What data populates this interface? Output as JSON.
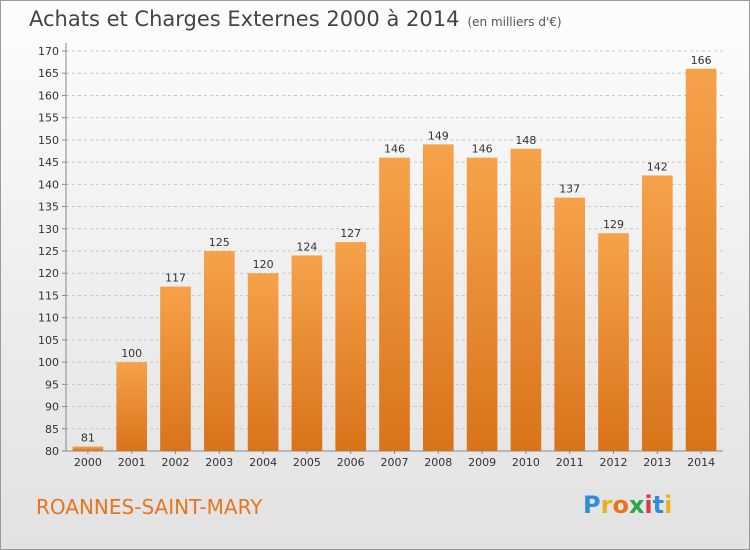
{
  "header": {
    "title": "Achats et Charges Externes 2000 à 2014",
    "unit": "(en milliers d'€)"
  },
  "footer": {
    "commune": "ROANNES-SAINT-MARY",
    "logo": {
      "letters": [
        "P",
        "r",
        "o",
        "x",
        "i",
        "t",
        "i"
      ],
      "colors": [
        "#2e8fd6",
        "#e8b21e",
        "#e8751e",
        "#2aa64a",
        "#d93a3a",
        "#2e8fd6",
        "#e8b21e"
      ]
    }
  },
  "chart_data": {
    "type": "bar",
    "categories": [
      "2000",
      "2001",
      "2002",
      "2003",
      "2004",
      "2005",
      "2006",
      "2007",
      "2008",
      "2009",
      "2010",
      "2011",
      "2012",
      "2013",
      "2014"
    ],
    "values": [
      81,
      100,
      117,
      125,
      120,
      124,
      127,
      146,
      149,
      146,
      148,
      137,
      129,
      142,
      166
    ],
    "title": "Achats et Charges Externes 2000 à 2014",
    "ylim": [
      80,
      170
    ],
    "yticks": [
      80,
      85,
      90,
      95,
      100,
      105,
      110,
      115,
      120,
      125,
      130,
      135,
      140,
      145,
      150,
      155,
      160,
      165,
      170
    ],
    "grid": true,
    "bar_color": "#f0922e"
  }
}
